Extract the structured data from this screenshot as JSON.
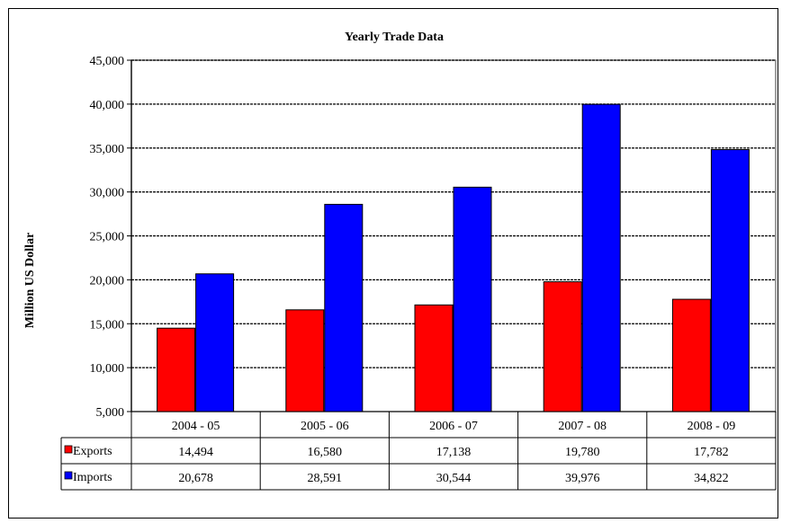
{
  "chart_data": {
    "type": "bar",
    "title": "Yearly Trade Data",
    "xlabel": "",
    "ylabel": "Million US Dollar",
    "ylim": [
      5000,
      45000
    ],
    "yticks": [
      "5,000",
      "10,000",
      "15,000",
      "20,000",
      "25,000",
      "30,000",
      "35,000",
      "40,000",
      "45,000"
    ],
    "ytick_values": [
      5000,
      10000,
      15000,
      20000,
      25000,
      30000,
      35000,
      40000,
      45000
    ],
    "grid": true,
    "categories": [
      "2004 - 05",
      "2005 - 06",
      "2006 - 07",
      "2007 - 08",
      "2008 - 09"
    ],
    "series": [
      {
        "name": "Exports",
        "color": "#ff0000",
        "values": [
          14494,
          16580,
          17138,
          19780,
          17782
        ],
        "labels": [
          "14,494",
          "16,580",
          "17,138",
          "19,780",
          "17,782"
        ]
      },
      {
        "name": "Imports",
        "color": "#0000ff",
        "values": [
          20678,
          28591,
          30544,
          39976,
          34822
        ],
        "labels": [
          "20,678",
          "28,591",
          "30,544",
          "39,976",
          "34,822"
        ]
      }
    ],
    "legend": "data table"
  }
}
